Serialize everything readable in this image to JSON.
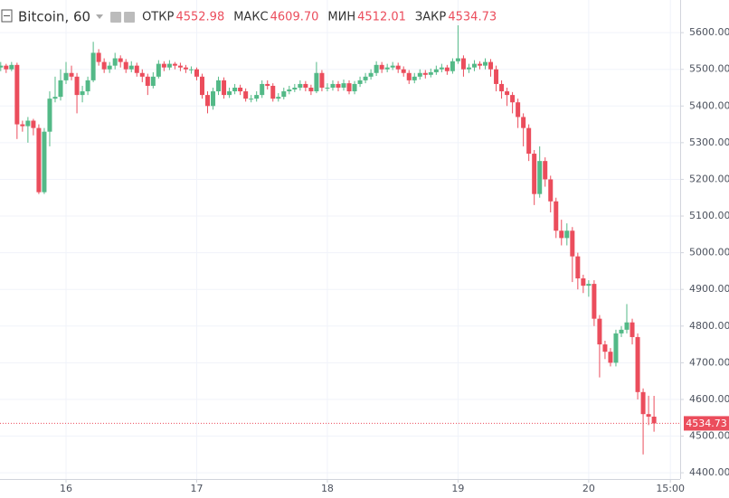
{
  "chart_data": {
    "type": "candlestick",
    "title": "Bitcoin, 60",
    "header_fields": [
      {
        "name": "ОТКР",
        "value": "4552.98"
      },
      {
        "name": "МАКС",
        "value": "4609.70"
      },
      {
        "name": "МИН",
        "value": "4512.01"
      },
      {
        "name": "ЗАКР",
        "value": "4534.73"
      }
    ],
    "x": [
      -12,
      -11,
      -10,
      -9,
      -8,
      -7,
      -6,
      -5,
      -4,
      -3,
      -2,
      -1,
      0,
      1,
      2,
      3,
      4,
      5,
      6,
      7,
      8,
      9,
      10,
      11,
      12,
      13,
      14,
      15,
      16,
      17,
      18,
      19,
      20,
      21,
      22,
      23,
      24,
      25,
      26,
      27,
      28,
      29,
      30,
      31,
      32,
      33,
      34,
      35,
      36,
      37,
      38,
      39,
      40,
      41,
      42,
      43,
      44,
      45,
      46,
      47,
      48,
      49,
      50,
      51,
      52,
      53,
      54,
      55,
      56,
      57,
      58,
      59,
      60,
      61,
      62,
      63,
      64,
      65,
      66,
      67,
      68,
      69,
      70,
      71,
      72,
      73,
      74,
      75,
      76,
      77,
      78,
      79,
      80,
      81,
      82,
      83,
      84,
      85,
      86,
      87,
      88,
      89,
      90,
      91,
      92,
      93,
      94,
      95,
      96,
      97,
      98,
      99,
      100,
      101,
      102,
      103,
      104,
      105,
      106,
      107,
      108
    ],
    "open": [
      5505,
      5510,
      5500,
      5512,
      5350,
      5345,
      5360,
      5340,
      5165,
      5330,
      5420,
      5425,
      5470,
      5490,
      5480,
      5430,
      5440,
      5470,
      5545,
      5520,
      5500,
      5510,
      5530,
      5520,
      5500,
      5510,
      5490,
      5480,
      5455,
      5480,
      5515,
      5505,
      5515,
      5510,
      5505,
      5500,
      5500,
      5480,
      5430,
      5400,
      5440,
      5470,
      5430,
      5440,
      5450,
      5440,
      5420,
      5420,
      5430,
      5460,
      5455,
      5420,
      5425,
      5440,
      5445,
      5450,
      5460,
      5450,
      5440,
      5490,
      5450,
      5450,
      5460,
      5450,
      5462,
      5440,
      5460,
      5470,
      5480,
      5490,
      5512,
      5500,
      5505,
      5510,
      5500,
      5490,
      5470,
      5480,
      5490,
      5485,
      5492,
      5500,
      5505,
      5495,
      5522,
      5530,
      5500,
      5505,
      5515,
      5510,
      5520,
      5500,
      5460,
      5440,
      5430,
      5410,
      5370,
      5340,
      5270,
      5160,
      5250,
      5200,
      5140,
      5060,
      5040,
      5060,
      4990,
      4930,
      4910,
      4915,
      4820,
      4750,
      4730,
      4700,
      4780,
      4790,
      4810,
      4770,
      4620,
      4560,
      4552.98
    ],
    "high": [
      5520,
      5515,
      5520,
      5518,
      5360,
      5370,
      5365,
      5350,
      5340,
      5440,
      5480,
      5500,
      5520,
      5510,
      5490,
      5455,
      5480,
      5575,
      5555,
      5530,
      5520,
      5545,
      5538,
      5528,
      5522,
      5518,
      5500,
      5488,
      5492,
      5525,
      5522,
      5525,
      5520,
      5518,
      5512,
      5508,
      5505,
      5488,
      5440,
      5450,
      5480,
      5478,
      5450,
      5460,
      5458,
      5448,
      5430,
      5440,
      5470,
      5470,
      5462,
      5435,
      5450,
      5455,
      5460,
      5470,
      5468,
      5458,
      5520,
      5498,
      5462,
      5470,
      5468,
      5472,
      5470,
      5468,
      5480,
      5490,
      5500,
      5522,
      5520,
      5515,
      5520,
      5518,
      5508,
      5498,
      5490,
      5500,
      5498,
      5502,
      5510,
      5515,
      5512,
      5530,
      5620,
      5538,
      5515,
      5525,
      5522,
      5530,
      5528,
      5510,
      5470,
      5450,
      5438,
      5420,
      5380,
      5350,
      5280,
      5290,
      5260,
      5210,
      5150,
      5090,
      5080,
      5070,
      5000,
      4940,
      4925,
      4925,
      4830,
      4760,
      4740,
      4790,
      4800,
      4860,
      4820,
      4780,
      4630,
      4610,
      4609.7
    ],
    "low": [
      5495,
      5490,
      5495,
      5310,
      5330,
      5300,
      5320,
      5160,
      5160,
      5290,
      5410,
      5415,
      5460,
      5470,
      5380,
      5410,
      5430,
      5465,
      5510,
      5490,
      5490,
      5500,
      5505,
      5490,
      5492,
      5480,
      5465,
      5430,
      5448,
      5475,
      5495,
      5498,
      5500,
      5495,
      5490,
      5488,
      5470,
      5420,
      5380,
      5390,
      5430,
      5420,
      5422,
      5432,
      5430,
      5412,
      5410,
      5412,
      5422,
      5445,
      5412,
      5412,
      5418,
      5432,
      5438,
      5442,
      5440,
      5430,
      5435,
      5440,
      5440,
      5442,
      5440,
      5442,
      5432,
      5432,
      5452,
      5462,
      5472,
      5482,
      5490,
      5492,
      5498,
      5490,
      5480,
      5460,
      5462,
      5472,
      5475,
      5478,
      5485,
      5492,
      5485,
      5488,
      5515,
      5480,
      5490,
      5495,
      5500,
      5500,
      5480,
      5440,
      5420,
      5400,
      5380,
      5340,
      5290,
      5250,
      5130,
      5150,
      5180,
      5110,
      5040,
      5020,
      5020,
      4920,
      4900,
      4890,
      4880,
      4800,
      4660,
      4710,
      4690,
      4690,
      4770,
      4780,
      4750,
      4600,
      4450,
      4530,
      4512.01
    ],
    "close": [
      5510,
      5500,
      5512,
      5350,
      5345,
      5360,
      5340,
      5165,
      5330,
      5420,
      5425,
      5470,
      5490,
      5480,
      5430,
      5440,
      5470,
      5545,
      5520,
      5500,
      5510,
      5530,
      5520,
      5500,
      5510,
      5490,
      5480,
      5455,
      5480,
      5515,
      5505,
      5515,
      5510,
      5505,
      5500,
      5500,
      5480,
      5430,
      5400,
      5440,
      5470,
      5430,
      5440,
      5450,
      5440,
      5420,
      5420,
      5430,
      5460,
      5455,
      5420,
      5425,
      5440,
      5445,
      5450,
      5460,
      5450,
      5440,
      5490,
      5450,
      5450,
      5460,
      5450,
      5462,
      5440,
      5460,
      5470,
      5480,
      5490,
      5512,
      5500,
      5505,
      5510,
      5500,
      5490,
      5470,
      5480,
      5490,
      5485,
      5492,
      5500,
      5505,
      5495,
      5522,
      5530,
      5500,
      5505,
      5515,
      5510,
      5520,
      5500,
      5460,
      5440,
      5430,
      5410,
      5370,
      5340,
      5270,
      5160,
      5250,
      5200,
      5140,
      5060,
      5040,
      5060,
      4990,
      4930,
      4910,
      4915,
      4820,
      4750,
      4730,
      4700,
      4780,
      4790,
      4810,
      4770,
      4620,
      4560,
      4552.98,
      4534.73
    ],
    "xlim": [
      -12.13,
      112.8
    ],
    "ylim": [
      4383,
      5689
    ],
    "xticks": [
      {
        "value": 0,
        "label": "16"
      },
      {
        "value": 24,
        "label": "17"
      },
      {
        "value": 48,
        "label": "18"
      },
      {
        "value": 72,
        "label": "19"
      },
      {
        "value": 96,
        "label": "20"
      },
      {
        "value": 111,
        "label": "15:00"
      }
    ],
    "yticks": [
      {
        "value": 4400,
        "label": "4400.00"
      },
      {
        "value": 4500,
        "label": "4500.00"
      },
      {
        "value": 4600,
        "label": "4600.00"
      },
      {
        "value": 4700,
        "label": "4700.00"
      },
      {
        "value": 4800,
        "label": "4800.00"
      },
      {
        "value": 4900,
        "label": "4900.00"
      },
      {
        "value": 5000,
        "label": "5000.00"
      },
      {
        "value": 5100,
        "label": "5100.00"
      },
      {
        "value": 5200,
        "label": "5200.00"
      },
      {
        "value": 5300,
        "label": "5300.00"
      },
      {
        "value": 5400,
        "label": "5400.00"
      },
      {
        "value": 5500,
        "label": "5500.00"
      },
      {
        "value": 5600,
        "label": "5600.00"
      }
    ],
    "up_color": "#53b987",
    "down_color": "#eb4d5c",
    "grid": true
  }
}
